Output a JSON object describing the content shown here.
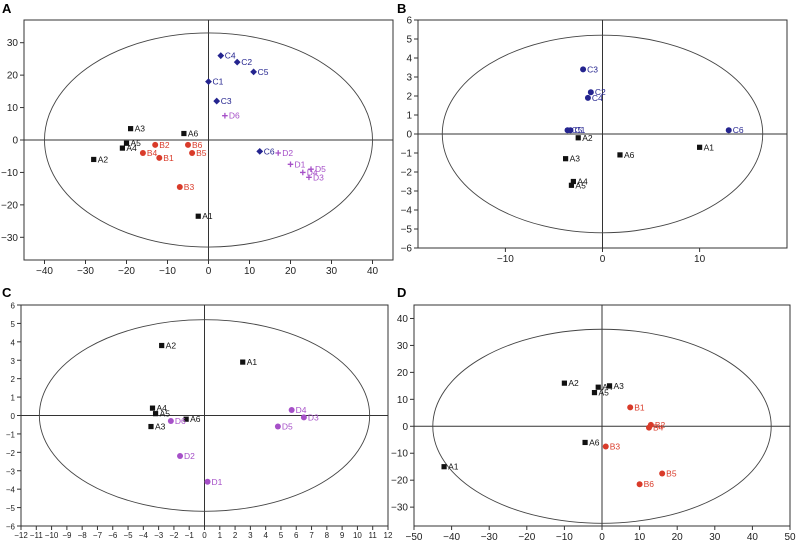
{
  "chart_data": [
    {
      "type": "scatter",
      "panel": "A",
      "xlim": [
        -45,
        45
      ],
      "ylim": [
        -37,
        37
      ],
      "xticks": [
        -40,
        -30,
        -20,
        -10,
        0,
        10,
        20,
        30,
        40
      ],
      "xtick_labels": [
        "−40",
        "−30",
        "−20",
        "−10",
        "0",
        "10",
        "20",
        "30",
        "40"
      ],
      "yticks": [
        -30,
        -20,
        -10,
        0,
        10,
        20,
        30
      ],
      "ytick_labels": [
        "−30",
        "−20",
        "−10",
        "0",
        "10",
        "20",
        "30"
      ],
      "ellipse": {
        "cx": 0,
        "cy": 0,
        "rx": 40,
        "ry": 33
      },
      "points": [
        {
          "label": "A1",
          "x": -2.5,
          "y": -23.5,
          "group": "A"
        },
        {
          "label": "A2",
          "x": -28,
          "y": -6,
          "group": "A"
        },
        {
          "label": "A3",
          "x": -19,
          "y": 3.5,
          "group": "A"
        },
        {
          "label": "A4",
          "x": -21,
          "y": -2.5,
          "group": "A"
        },
        {
          "label": "A5",
          "x": -20,
          "y": -1,
          "group": "A"
        },
        {
          "label": "A6",
          "x": -6,
          "y": 2,
          "group": "A"
        },
        {
          "label": "B1",
          "x": -12,
          "y": -5.5,
          "group": "B"
        },
        {
          "label": "B2",
          "x": -13,
          "y": -1.5,
          "group": "B"
        },
        {
          "label": "B3",
          "x": -7,
          "y": -14.5,
          "group": "B"
        },
        {
          "label": "B4",
          "x": -16,
          "y": -4,
          "group": "B"
        },
        {
          "label": "B5",
          "x": -4,
          "y": -4,
          "group": "B"
        },
        {
          "label": "B6",
          "x": -5,
          "y": -1.5,
          "group": "B"
        },
        {
          "label": "C1",
          "x": 0,
          "y": 18,
          "group": "C"
        },
        {
          "label": "C2",
          "x": 7,
          "y": 24,
          "group": "C"
        },
        {
          "label": "C3",
          "x": 2,
          "y": 12,
          "group": "C"
        },
        {
          "label": "C4",
          "x": 3,
          "y": 26,
          "group": "C"
        },
        {
          "label": "C5",
          "x": 11,
          "y": 21,
          "group": "C"
        },
        {
          "label": "C6",
          "x": 12.5,
          "y": -3.5,
          "group": "C"
        },
        {
          "label": "D1",
          "x": 20,
          "y": -7.5,
          "group": "D"
        },
        {
          "label": "D2",
          "x": 17,
          "y": -4,
          "group": "D"
        },
        {
          "label": "D3",
          "x": 24.5,
          "y": -11.5,
          "group": "D"
        },
        {
          "label": "D4",
          "x": 23,
          "y": -10,
          "group": "D"
        },
        {
          "label": "D5",
          "x": 25,
          "y": -9,
          "group": "D"
        },
        {
          "label": "D6",
          "x": 4,
          "y": 7.5,
          "group": "D"
        }
      ]
    },
    {
      "type": "scatter",
      "panel": "B",
      "xlim": [
        -19,
        19
      ],
      "ylim": [
        -6,
        6
      ],
      "xticks": [
        -10,
        0,
        10
      ],
      "xtick_labels": [
        "−10",
        "0",
        "10"
      ],
      "yticks": [
        -6,
        -5,
        -4,
        -3,
        -2,
        -1,
        0,
        1,
        2,
        3,
        4,
        5,
        6
      ],
      "ytick_labels": [
        "−6",
        "−5",
        "−4",
        "−3",
        "−2",
        "−1",
        "0",
        "1",
        "2",
        "3",
        "4",
        "5",
        "6"
      ],
      "ellipse": {
        "cx": 0,
        "cy": 0,
        "rx": 16.5,
        "ry": 5.2
      },
      "points": [
        {
          "label": "A1",
          "x": 10,
          "y": -0.7,
          "group": "A"
        },
        {
          "label": "A2",
          "x": -2.5,
          "y": -0.2,
          "group": "A"
        },
        {
          "label": "A3",
          "x": -3.8,
          "y": -1.3,
          "group": "A"
        },
        {
          "label": "A4",
          "x": -3,
          "y": -2.5,
          "group": "A"
        },
        {
          "label": "A5",
          "x": -3.2,
          "y": -2.7,
          "group": "A"
        },
        {
          "label": "A6",
          "x": 1.8,
          "y": -1.1,
          "group": "A"
        },
        {
          "label": "C1",
          "x": -3.3,
          "y": 0.2,
          "group": "C"
        },
        {
          "label": "C2",
          "x": -1.2,
          "y": 2.2,
          "group": "C"
        },
        {
          "label": "C3",
          "x": -2,
          "y": 3.4,
          "group": "C"
        },
        {
          "label": "C4",
          "x": -1.5,
          "y": 1.9,
          "group": "C"
        },
        {
          "label": "C5",
          "x": -3.6,
          "y": 0.2,
          "group": "C"
        },
        {
          "label": "C6",
          "x": 13,
          "y": 0.2,
          "group": "C"
        }
      ]
    },
    {
      "type": "scatter",
      "panel": "C",
      "xlim": [
        -12,
        12
      ],
      "ylim": [
        -6,
        6
      ],
      "xticks": [
        -12,
        -11,
        -10,
        -9,
        -8,
        -7,
        -6,
        -5,
        -4,
        -3,
        -2,
        -1,
        0,
        1,
        2,
        3,
        4,
        5,
        6,
        7,
        8,
        9,
        10,
        11,
        12
      ],
      "xtick_labels": [
        "−12",
        "−11",
        "−10",
        "−9",
        "−8",
        "−7",
        "−6",
        "−5",
        "−4",
        "−3",
        "−2",
        "−1",
        "0",
        "1",
        "2",
        "3",
        "4",
        "5",
        "6",
        "7",
        "8",
        "9",
        "10",
        "11",
        "12"
      ],
      "yticks": [
        -6,
        -5,
        -4,
        -3,
        -2,
        -1,
        0,
        1,
        2,
        3,
        4,
        5,
        6
      ],
      "ytick_labels": [
        "−6",
        "−5",
        "−4",
        "−3",
        "−2",
        "−1",
        "0",
        "1",
        "2",
        "3",
        "4",
        "5",
        "6"
      ],
      "ellipse": {
        "cx": 0,
        "cy": 0,
        "rx": 10.8,
        "ry": 5.2
      },
      "points": [
        {
          "label": "A1",
          "x": 2.5,
          "y": 2.9,
          "group": "A"
        },
        {
          "label": "A2",
          "x": -2.8,
          "y": 3.8,
          "group": "A"
        },
        {
          "label": "A3",
          "x": -3.5,
          "y": -0.6,
          "group": "A"
        },
        {
          "label": "A4",
          "x": -3.4,
          "y": 0.4,
          "group": "A"
        },
        {
          "label": "A5",
          "x": -3.2,
          "y": 0.1,
          "group": "A"
        },
        {
          "label": "A6",
          "x": -1.2,
          "y": -0.2,
          "group": "A"
        },
        {
          "label": "D1",
          "x": 0.2,
          "y": -3.6,
          "group": "D"
        },
        {
          "label": "D2",
          "x": -1.6,
          "y": -2.2,
          "group": "D"
        },
        {
          "label": "D3",
          "x": 6.5,
          "y": -0.1,
          "group": "D"
        },
        {
          "label": "D4",
          "x": 5.7,
          "y": 0.3,
          "group": "D"
        },
        {
          "label": "D5",
          "x": 4.8,
          "y": -0.6,
          "group": "D"
        },
        {
          "label": "D6",
          "x": -2.2,
          "y": -0.3,
          "group": "D"
        }
      ]
    },
    {
      "type": "scatter",
      "panel": "D",
      "xlim": [
        -50,
        50
      ],
      "ylim": [
        -37,
        45
      ],
      "xticks": [
        -50,
        -40,
        -30,
        -20,
        -10,
        0,
        10,
        20,
        30,
        40,
        50
      ],
      "xtick_labels": [
        "−50",
        "−40",
        "−30",
        "−20",
        "−10",
        "0",
        "10",
        "20",
        "30",
        "40",
        "50"
      ],
      "yticks": [
        -30,
        -20,
        -10,
        0,
        10,
        20,
        30,
        40
      ],
      "ytick_labels": [
        "−30",
        "−20",
        "−10",
        "0",
        "10",
        "20",
        "30",
        "40"
      ],
      "ellipse": {
        "cx": 0,
        "cy": 0,
        "rx": 45,
        "ry": 36
      },
      "points": [
        {
          "label": "A1",
          "x": -42,
          "y": -15,
          "group": "A"
        },
        {
          "label": "A2",
          "x": -10,
          "y": 16,
          "group": "A"
        },
        {
          "label": "A3",
          "x": 2,
          "y": 15,
          "group": "A"
        },
        {
          "label": "A4",
          "x": -1,
          "y": 14.5,
          "group": "A"
        },
        {
          "label": "A5",
          "x": -2,
          "y": 12.5,
          "group": "A"
        },
        {
          "label": "A6",
          "x": -4.5,
          "y": -6,
          "group": "A"
        },
        {
          "label": "B1",
          "x": 7.5,
          "y": 7,
          "group": "B"
        },
        {
          "label": "B2",
          "x": 13,
          "y": 0.5,
          "group": "B"
        },
        {
          "label": "B3",
          "x": 1,
          "y": -7.5,
          "group": "B"
        },
        {
          "label": "B4",
          "x": 12.5,
          "y": -0.5,
          "group": "B"
        },
        {
          "label": "B5",
          "x": 16,
          "y": -17.5,
          "group": "B"
        },
        {
          "label": "B6",
          "x": 10,
          "y": -21.5,
          "group": "B"
        }
      ]
    }
  ],
  "panel_labels": {
    "A": "A",
    "B": "B",
    "C": "C",
    "D": "D"
  },
  "group_colors": {
    "A": "#111111",
    "B": "#d93b2a",
    "C": "#24248f",
    "D": "#a650c8"
  }
}
